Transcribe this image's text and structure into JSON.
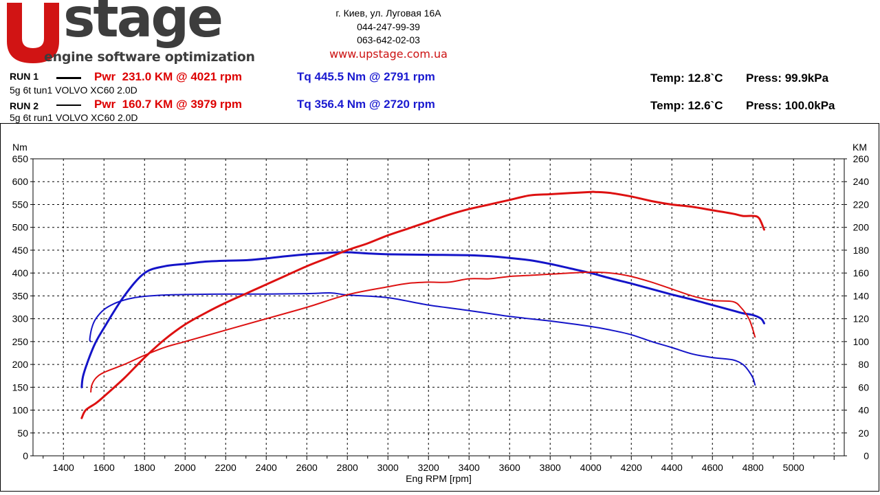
{
  "brand": {
    "logo_letter": "U",
    "logo_word": "stage",
    "tagline": "engine software optimization"
  },
  "contact": {
    "address": "г. Киев, ул. Луговая 16А",
    "phone1": "044-247-99-39",
    "phone2": "063-642-02-03",
    "website": "www.upstage.com.ua"
  },
  "runs": [
    {
      "label": "RUN 1",
      "power": "Pwr  231.0 KM @ 4021 rpm",
      "torque": "Tq 445.5 Nm @ 2791 rpm",
      "description": "5g 6t tun1 VOLVO XC60 2.0D",
      "temp": "Temp: 12.8`C",
      "press": "Press: 99.9kPa"
    },
    {
      "label": "RUN 2",
      "power": "Pwr  160.7 KM @ 3979 rpm",
      "torque": "Tq 356.4 Nm @ 2720 rpm",
      "description": "5g 6t run1 VOLVO XC60 2.0D",
      "temp": "Temp: 12.6`C",
      "press": "Press: 100.0kPa"
    }
  ],
  "colors": {
    "power": "#dd1111",
    "torque": "#1414c8",
    "grid": "#000000"
  },
  "chart_data": {
    "type": "line",
    "title": "",
    "xlabel": "Eng RPM [rpm]",
    "ylabel_left": "Nm",
    "ylabel_right": "KM",
    "xlim": [
      1250,
      5250
    ],
    "ylim_left": [
      0,
      650
    ],
    "ylim_right": [
      0,
      260
    ],
    "x_ticks": [
      1400,
      1600,
      1800,
      2000,
      2200,
      2400,
      2600,
      2800,
      3000,
      3200,
      3400,
      3600,
      3800,
      4000,
      4200,
      4400,
      4600,
      4800,
      5000
    ],
    "y_ticks_left": [
      0,
      50,
      100,
      150,
      200,
      250,
      300,
      350,
      400,
      450,
      500,
      550,
      600,
      650
    ],
    "y_ticks_right": [
      0,
      20,
      40,
      60,
      80,
      100,
      120,
      140,
      160,
      180,
      200,
      220,
      240,
      260
    ],
    "grid": true,
    "series": [
      {
        "name": "RUN 1 Torque",
        "axis": "left",
        "quantity": "torque",
        "width": 3,
        "x": [
          1490,
          1500,
          1550,
          1600,
          1700,
          1800,
          1900,
          2000,
          2100,
          2200,
          2300,
          2400,
          2500,
          2600,
          2700,
          2791,
          2900,
          3000,
          3200,
          3400,
          3500,
          3600,
          3700,
          3800,
          3900,
          4000,
          4100,
          4200,
          4300,
          4400,
          4500,
          4600,
          4700,
          4750,
          4800,
          4840,
          4855
        ],
        "values": [
          150,
          180,
          240,
          280,
          350,
          400,
          415,
          420,
          425,
          427,
          428,
          432,
          437,
          441,
          444,
          445.5,
          443,
          441,
          440,
          439,
          437,
          433,
          428,
          420,
          410,
          400,
          388,
          377,
          365,
          353,
          342,
          330,
          318,
          312,
          308,
          300,
          290
        ]
      },
      {
        "name": "RUN 2 Torque",
        "axis": "left",
        "quantity": "torque",
        "width": 2,
        "x": [
          1535,
          1530,
          1540,
          1560,
          1600,
          1650,
          1700,
          1750,
          1800,
          1900,
          2000,
          2200,
          2400,
          2600,
          2720,
          2800,
          3000,
          3200,
          3400,
          3600,
          3800,
          4000,
          4100,
          4200,
          4300,
          4400,
          4500,
          4600,
          4700,
          4750,
          4780,
          4800,
          4810
        ],
        "values": [
          250,
          255,
          280,
          300,
          320,
          333,
          341,
          346,
          349,
          352,
          353,
          354,
          354,
          355,
          356.4,
          352,
          346,
          330,
          318,
          305,
          295,
          283,
          275,
          265,
          250,
          237,
          223,
          215,
          210,
          200,
          185,
          170,
          155
        ]
      },
      {
        "name": "RUN 1 Power",
        "axis": "right",
        "quantity": "power",
        "width": 3,
        "x": [
          1490,
          1510,
          1560,
          1600,
          1700,
          1800,
          1900,
          2000,
          2100,
          2200,
          2300,
          2400,
          2500,
          2600,
          2700,
          2800,
          2900,
          3000,
          3100,
          3200,
          3300,
          3400,
          3500,
          3600,
          3700,
          3800,
          3900,
          4000,
          4021,
          4100,
          4200,
          4300,
          4400,
          4500,
          4600,
          4700,
          4750,
          4800,
          4830,
          4855
        ],
        "values": [
          33,
          40,
          46,
          52,
          68,
          86,
          102,
          115,
          125,
          134,
          142,
          150,
          158,
          166,
          173,
          180,
          186,
          193,
          199,
          205,
          211,
          216,
          220,
          224,
          228,
          229,
          230,
          231,
          231,
          230,
          227,
          223,
          220,
          218,
          215,
          212,
          210,
          210,
          208,
          198
        ]
      },
      {
        "name": "RUN 2 Power",
        "axis": "right",
        "quantity": "power",
        "width": 2,
        "x": [
          1535,
          1540,
          1560,
          1600,
          1700,
          1800,
          1900,
          2000,
          2200,
          2400,
          2600,
          2800,
          3000,
          3100,
          3200,
          3300,
          3400,
          3500,
          3600,
          3700,
          3800,
          3979,
          4100,
          4200,
          4300,
          4400,
          4500,
          4600,
          4700,
          4740,
          4780,
          4800,
          4810
        ],
        "values": [
          56,
          62,
          68,
          73,
          80,
          88,
          95,
          100,
          110,
          120,
          130,
          141,
          148,
          151,
          152,
          152,
          155,
          155,
          157,
          158,
          159,
          160.7,
          160,
          157,
          152,
          146,
          140,
          136,
          135,
          130,
          120,
          110,
          104
        ]
      }
    ]
  }
}
